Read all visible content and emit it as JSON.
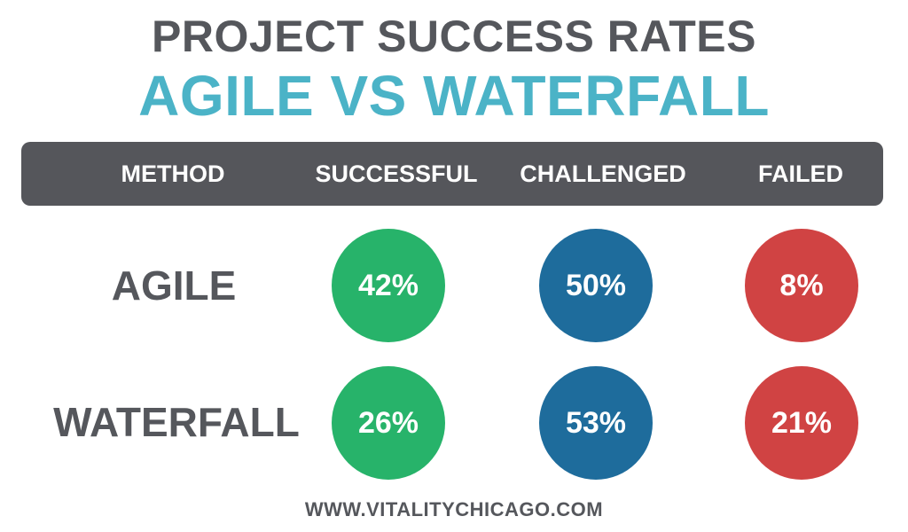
{
  "title": {
    "line1": "PROJECT SUCCESS RATES",
    "line2": "AGILE VS WATERFALL"
  },
  "footer": {
    "url": "WWW.VITALITYCHICAGO.COM"
  },
  "colors": {
    "successful": "#27b36a",
    "challenged": "#1e6c9c",
    "failed": "#d04343",
    "header_bg": "#55565b",
    "title_gray": "#55575c",
    "title_teal": "#4bb3c7"
  },
  "chart_data": {
    "type": "table",
    "title": "PROJECT SUCCESS RATES AGILE VS WATERFALL",
    "columns": [
      "METHOD",
      "SUCCESSFUL",
      "CHALLENGED",
      "FAILED"
    ],
    "rows": [
      {
        "method": "AGILE",
        "values": [
          42,
          50,
          8
        ],
        "labels": [
          "42%",
          "50%",
          "8%"
        ]
      },
      {
        "method": "WATERFALL",
        "values": [
          26,
          53,
          21
        ],
        "labels": [
          "26%",
          "53%",
          "21%"
        ]
      }
    ],
    "unit": "%"
  }
}
